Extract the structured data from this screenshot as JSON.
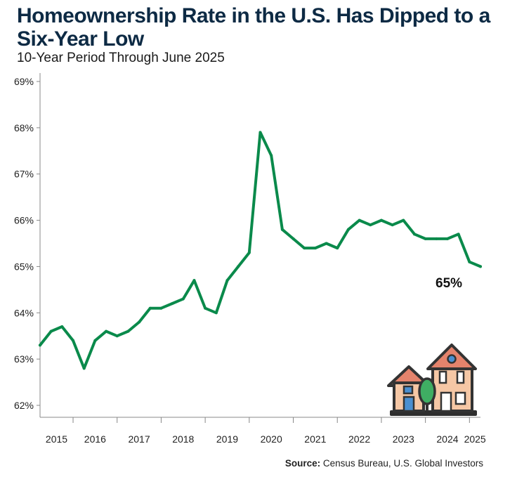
{
  "header": {
    "title": "Homeownership Rate in the U.S. Has Dipped to a Six-Year Low",
    "subtitle": "10-Year Period Through June 2025"
  },
  "source": {
    "label": "Source:",
    "text": " Census Bureau, U.S. Global Investors"
  },
  "end_label": "65%",
  "illustration": {
    "icon": "houses-with-tree-icon"
  },
  "colors": {
    "line": "#0a8a4b",
    "axis": "#888888",
    "title": "#0d2a44"
  },
  "chart_data": {
    "type": "line",
    "title": "Homeownership Rate in the U.S. Has Dipped to a Six-Year Low",
    "subtitle": "10-Year Period Through June 2025",
    "xlabel": "",
    "ylabel": "",
    "ylim": [
      62,
      69
    ],
    "yticks": [
      "62%",
      "63%",
      "64%",
      "65%",
      "66%",
      "67%",
      "68%",
      "69%"
    ],
    "xticks": [
      "2015",
      "2016",
      "2017",
      "2018",
      "2019",
      "2020",
      "2021",
      "2022",
      "2023",
      "2024",
      "2025"
    ],
    "grid": false,
    "x": [
      "2015 Q2",
      "2015 Q3",
      "2015 Q4",
      "2016 Q1",
      "2016 Q2",
      "2016 Q3",
      "2016 Q4",
      "2017 Q1",
      "2017 Q2",
      "2017 Q3",
      "2017 Q4",
      "2018 Q1",
      "2018 Q2",
      "2018 Q3",
      "2018 Q4",
      "2019 Q1",
      "2019 Q2",
      "2019 Q3",
      "2019 Q4",
      "2020 Q1",
      "2020 Q2",
      "2020 Q3",
      "2020 Q4",
      "2021 Q1",
      "2021 Q2",
      "2021 Q3",
      "2021 Q4",
      "2022 Q1",
      "2022 Q2",
      "2022 Q3",
      "2022 Q4",
      "2023 Q1",
      "2023 Q2",
      "2023 Q3",
      "2023 Q4",
      "2024 Q1",
      "2024 Q2",
      "2024 Q3",
      "2024 Q4",
      "2025 Q1",
      "2025 Q2"
    ],
    "series": [
      {
        "values": [
          63.3,
          63.6,
          63.7,
          63.4,
          62.8,
          63.4,
          63.6,
          63.5,
          63.6,
          63.8,
          64.1,
          64.1,
          64.2,
          64.3,
          64.7,
          64.1,
          64.0,
          64.7,
          65.0,
          65.3,
          67.9,
          67.4,
          65.8,
          65.6,
          65.4,
          65.4,
          65.5,
          65.4,
          65.8,
          66.0,
          65.9,
          66.0,
          65.9,
          66.0,
          65.7,
          65.6,
          65.6,
          65.6,
          65.7,
          65.1,
          65.0
        ]
      }
    ]
  }
}
